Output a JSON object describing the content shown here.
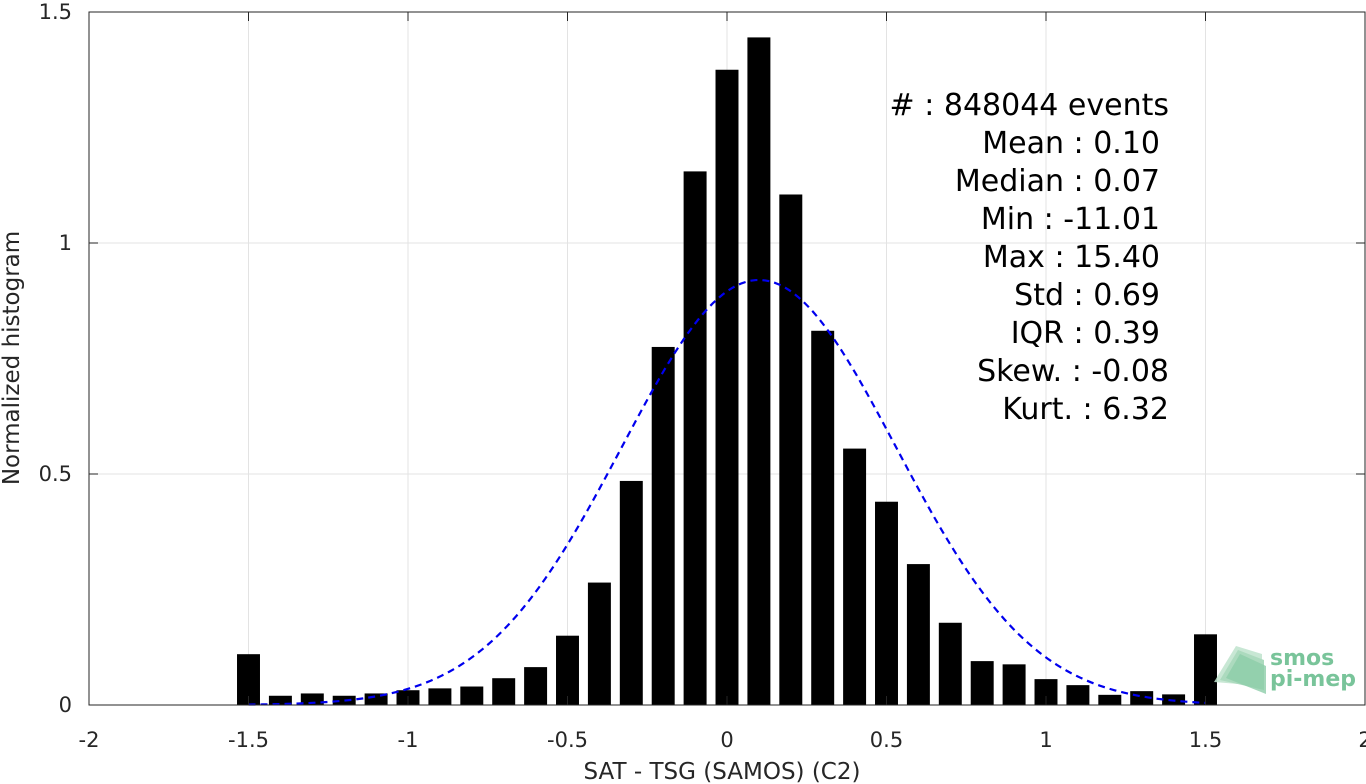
{
  "chart_data": {
    "type": "bar",
    "xlabel": "SAT - TSG (SAMOS) (C2)",
    "ylabel": "Normalized histogram",
    "xlim": [
      -2,
      2
    ],
    "ylim": [
      0,
      1.5
    ],
    "xticks": [
      "-2",
      "-1.5",
      "-1",
      "-0.5",
      "0",
      "0.5",
      "1",
      "1.5",
      "2"
    ],
    "yticks": [
      "0",
      "0.5",
      "1",
      "1.5"
    ],
    "grid": true,
    "bin_width": 0.1,
    "bins": [
      {
        "x": -1.5,
        "y": 0.11
      },
      {
        "x": -1.4,
        "y": 0.02
      },
      {
        "x": -1.3,
        "y": 0.025
      },
      {
        "x": -1.2,
        "y": 0.02
      },
      {
        "x": -1.1,
        "y": 0.025
      },
      {
        "x": -1.0,
        "y": 0.032
      },
      {
        "x": -0.9,
        "y": 0.036
      },
      {
        "x": -0.8,
        "y": 0.04
      },
      {
        "x": -0.7,
        "y": 0.058
      },
      {
        "x": -0.6,
        "y": 0.082
      },
      {
        "x": -0.5,
        "y": 0.15
      },
      {
        "x": -0.4,
        "y": 0.265
      },
      {
        "x": -0.3,
        "y": 0.485
      },
      {
        "x": -0.2,
        "y": 0.775
      },
      {
        "x": -0.1,
        "y": 1.155
      },
      {
        "x": 0.0,
        "y": 1.375
      },
      {
        "x": 0.1,
        "y": 1.445
      },
      {
        "x": 0.2,
        "y": 1.105
      },
      {
        "x": 0.3,
        "y": 0.81
      },
      {
        "x": 0.4,
        "y": 0.555
      },
      {
        "x": 0.5,
        "y": 0.44
      },
      {
        "x": 0.6,
        "y": 0.305
      },
      {
        "x": 0.7,
        "y": 0.178
      },
      {
        "x": 0.8,
        "y": 0.095
      },
      {
        "x": 0.9,
        "y": 0.088
      },
      {
        "x": 1.0,
        "y": 0.056
      },
      {
        "x": 1.1,
        "y": 0.043
      },
      {
        "x": 1.2,
        "y": 0.022
      },
      {
        "x": 1.3,
        "y": 0.03
      },
      {
        "x": 1.4,
        "y": 0.023
      },
      {
        "x": 1.5,
        "y": 0.153
      }
    ],
    "fit_curve": {
      "style": "dashed",
      "color": "#0000ee",
      "mean": 0.1,
      "std": 0.43,
      "peak": 0.92,
      "x_range": [
        -1.5,
        1.5
      ]
    },
    "stats": [
      "#  : 848044 events",
      "Mean : 0.10",
      "Median : 0.07",
      "Min : -11.01",
      "Max : 15.40",
      "Std : 0.69",
      "IQR : 0.39",
      "Skew. : -0.08",
      "Kurt. : 6.32"
    ]
  },
  "logo": {
    "line1": "smos",
    "line2": "pi-mep"
  },
  "colors": {
    "bar": "#000000",
    "curve": "#0000ee",
    "grid": "#e3e3e3",
    "axis": "#262626",
    "logo": "#79c49a"
  }
}
